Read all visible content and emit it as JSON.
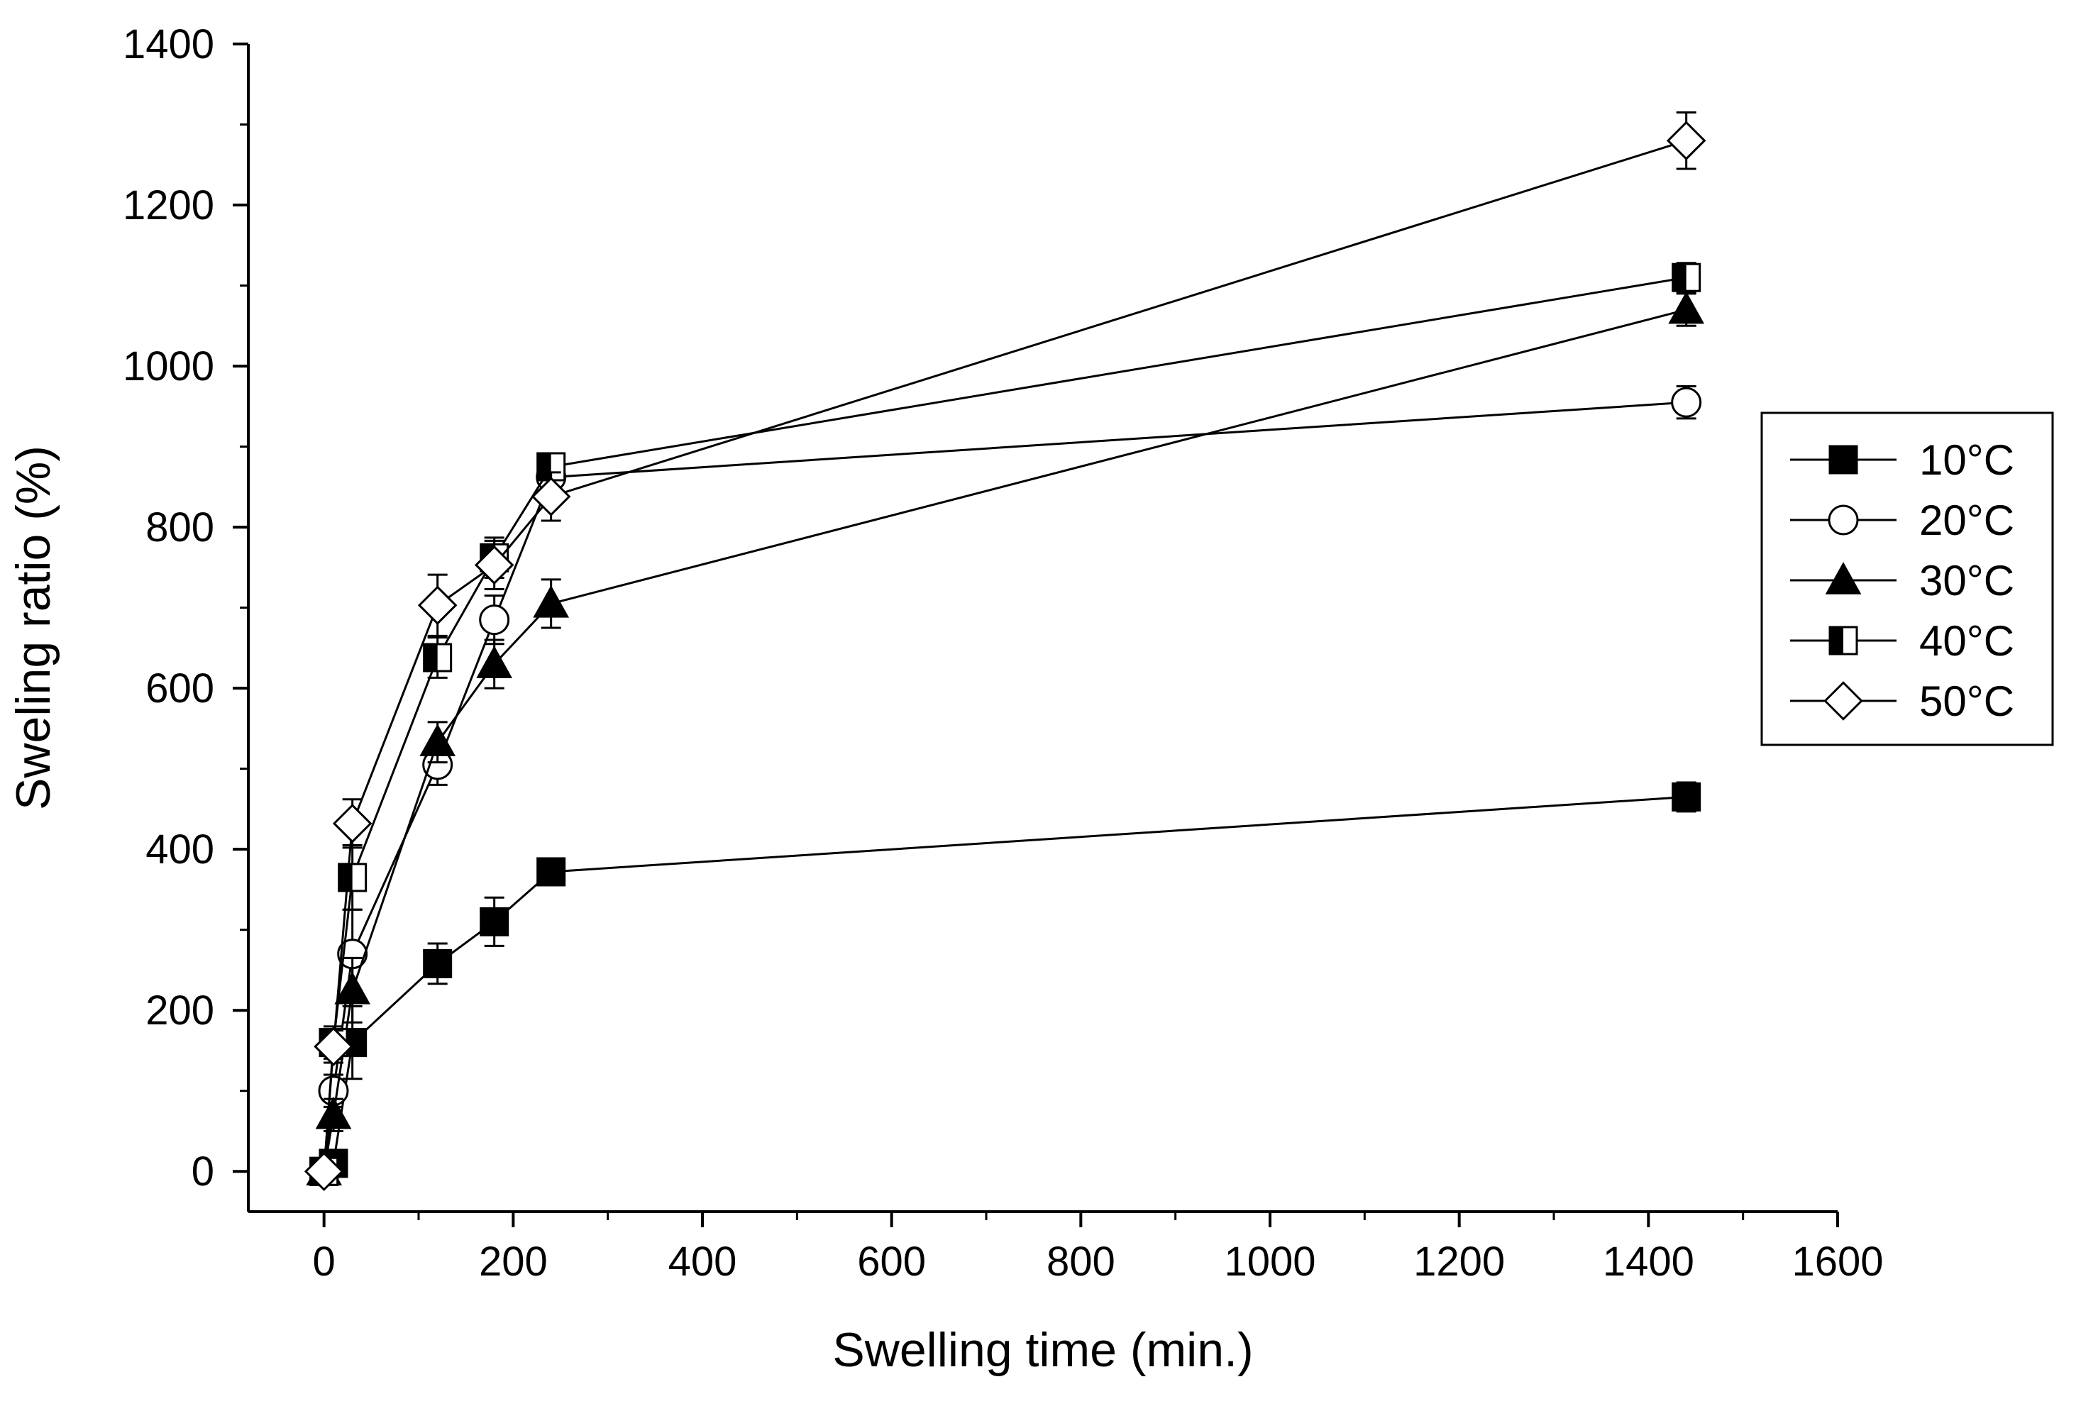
{
  "chart_data": {
    "type": "line",
    "title": "",
    "xlabel": "Swelling time (min.)",
    "ylabel": "Sweling ratio (%)",
    "xlim": [
      -80,
      1600
    ],
    "ylim": [
      -50,
      1400
    ],
    "xticks": [
      0,
      200,
      400,
      600,
      800,
      1000,
      1200,
      1400,
      1600
    ],
    "yticks": [
      0,
      200,
      400,
      600,
      800,
      1000,
      1200,
      1400
    ],
    "grid": false,
    "legend_position": "right",
    "series": [
      {
        "name": "10°C",
        "marker": "square-filled",
        "x": [
          0,
          10,
          30,
          120,
          180,
          240,
          1440
        ],
        "y": [
          0,
          10,
          160,
          258,
          310,
          372,
          465
        ],
        "error": [
          10,
          15,
          45,
          25,
          30,
          12,
          18
        ]
      },
      {
        "name": "20°C",
        "marker": "circle-open",
        "x": [
          0,
          10,
          30,
          120,
          180,
          240,
          1440
        ],
        "y": [
          0,
          100,
          270,
          505,
          685,
          862,
          955
        ],
        "error": [
          8,
          20,
          55,
          25,
          30,
          15,
          20
        ]
      },
      {
        "name": "30°C",
        "marker": "triangle-filled",
        "x": [
          0,
          10,
          30,
          120,
          180,
          240,
          1440
        ],
        "y": [
          0,
          70,
          225,
          533,
          630,
          705,
          1070
        ],
        "error": [
          8,
          20,
          40,
          25,
          30,
          30,
          20
        ]
      },
      {
        "name": "40°C",
        "marker": "square-half",
        "x": [
          0,
          10,
          30,
          120,
          180,
          240,
          1440
        ],
        "y": [
          0,
          160,
          365,
          638,
          762,
          875,
          1110
        ],
        "error": [
          8,
          20,
          40,
          25,
          25,
          15,
          18
        ]
      },
      {
        "name": "50°C",
        "marker": "diamond-open",
        "x": [
          0,
          10,
          30,
          120,
          180,
          240,
          1440
        ],
        "y": [
          0,
          155,
          432,
          703,
          753,
          838,
          1280
        ],
        "error": [
          8,
          20,
          30,
          38,
          30,
          30,
          35
        ]
      }
    ]
  }
}
